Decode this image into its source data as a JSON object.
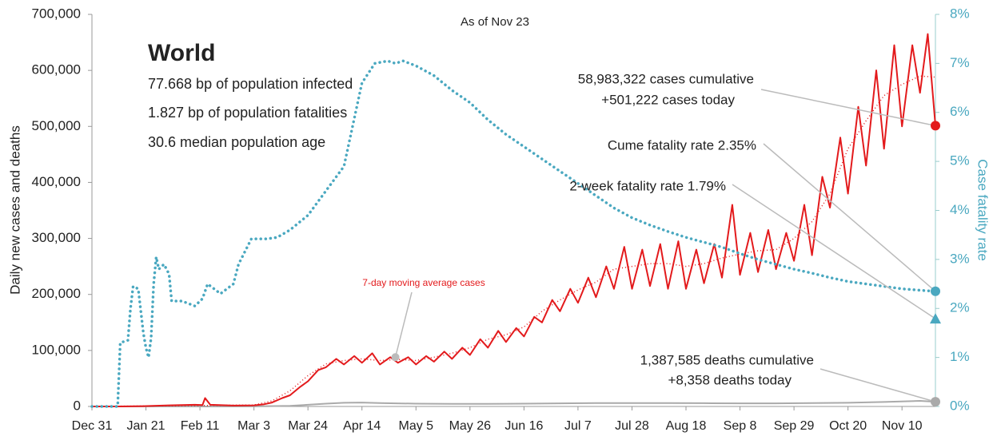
{
  "chart_data": {
    "type": "line",
    "subtitle": "As of Nov 23",
    "panel": {
      "title": "World",
      "lines": [
        "77.668 bp of population infected",
        "1.827 bp of population fatalities",
        "30.6 median population age"
      ]
    },
    "ylabel": "Daily new cases and deaths",
    "y2label": "Case fatality rate",
    "xlim": [
      0,
      328
    ],
    "xticks": [
      {
        "value": 0,
        "label": "Dec 31"
      },
      {
        "value": 21,
        "label": "Jan 21"
      },
      {
        "value": 42,
        "label": "Feb 11"
      },
      {
        "value": 63,
        "label": "Mar 3"
      },
      {
        "value": 84,
        "label": "Mar 24"
      },
      {
        "value": 105,
        "label": "Apr 14"
      },
      {
        "value": 126,
        "label": "May 5"
      },
      {
        "value": 147,
        "label": "May 26"
      },
      {
        "value": 168,
        "label": "Jun 16"
      },
      {
        "value": 189,
        "label": "Jul 7"
      },
      {
        "value": 210,
        "label": "Jul 28"
      },
      {
        "value": 231,
        "label": "Aug 18"
      },
      {
        "value": 252,
        "label": "Sep 8"
      },
      {
        "value": 273,
        "label": "Sep 29"
      },
      {
        "value": 294,
        "label": "Oct 20"
      },
      {
        "value": 315,
        "label": "Nov 10"
      }
    ],
    "ylim": [
      0,
      700000
    ],
    "yticks": [
      0,
      {
        "value": 100000,
        "label": "100,000"
      },
      {
        "value": 200000,
        "label": "200,000"
      },
      {
        "value": 300000,
        "label": "300,000"
      },
      {
        "value": 400000,
        "label": "400,000"
      },
      {
        "value": 500000,
        "label": "500,000"
      },
      {
        "value": 600000,
        "label": "600,000"
      },
      {
        "value": 700000,
        "label": "700,000"
      }
    ],
    "y2lim": [
      0,
      8
    ],
    "y2ticks": [
      {
        "value": 0,
        "label": "0%"
      },
      {
        "value": 1,
        "label": "1%"
      },
      {
        "value": 2,
        "label": "2%"
      },
      {
        "value": 3,
        "label": "3%"
      },
      {
        "value": 4,
        "label": "4%"
      },
      {
        "value": 5,
        "label": "5%"
      },
      {
        "value": 6,
        "label": "6%"
      },
      {
        "value": 7,
        "label": "7%"
      },
      {
        "value": 8,
        "label": "8%"
      }
    ],
    "series": [
      {
        "color": "#aaaaaa",
        "style": "solid",
        "axis": "y",
        "x": [
          0,
          50,
          63,
          77,
          84,
          91,
          98,
          105,
          112,
          126,
          140,
          154,
          168,
          182,
          196,
          210,
          224,
          238,
          252,
          266,
          280,
          294,
          308,
          322,
          328
        ],
        "values": [
          0,
          0,
          100,
          1000,
          3000,
          5000,
          6500,
          7000,
          6000,
          5000,
          4500,
          4500,
          5000,
          5500,
          6000,
          6000,
          6000,
          5800,
          5500,
          5500,
          6000,
          6500,
          8000,
          10000,
          8358
        ]
      },
      {
        "color": "#e31a1c",
        "style": "solid",
        "axis": "y",
        "x": [
          0,
          10,
          20,
          30,
          40,
          43,
          44,
          46,
          55,
          63,
          67,
          70,
          74,
          77,
          81,
          84,
          88,
          91,
          95,
          98,
          102,
          105,
          109,
          112,
          116,
          119,
          123,
          126,
          130,
          133,
          137,
          140,
          144,
          147,
          151,
          154,
          158,
          161,
          165,
          168,
          172,
          175,
          179,
          182,
          186,
          189,
          193,
          196,
          200,
          203,
          207,
          210,
          214,
          217,
          221,
          224,
          228,
          231,
          235,
          238,
          242,
          245,
          249,
          252,
          256,
          259,
          263,
          266,
          270,
          273,
          277,
          280,
          284,
          287,
          291,
          294,
          298,
          301,
          305,
          308,
          312,
          315,
          319,
          322,
          325,
          328
        ],
        "values": [
          0,
          0,
          500,
          2000,
          3000,
          2500,
          15000,
          3000,
          1500,
          2000,
          4000,
          7000,
          15000,
          20000,
          35000,
          45000,
          65000,
          70000,
          85000,
          75000,
          90000,
          78000,
          95000,
          75000,
          88000,
          78000,
          88000,
          75000,
          90000,
          80000,
          98000,
          85000,
          105000,
          92000,
          120000,
          105000,
          135000,
          115000,
          140000,
          125000,
          160000,
          150000,
          190000,
          170000,
          210000,
          185000,
          230000,
          195000,
          250000,
          210000,
          285000,
          210000,
          280000,
          215000,
          290000,
          210000,
          295000,
          210000,
          280000,
          220000,
          290000,
          230000,
          360000,
          235000,
          310000,
          240000,
          315000,
          245000,
          310000,
          260000,
          360000,
          270000,
          410000,
          355000,
          480000,
          380000,
          535000,
          430000,
          600000,
          460000,
          645000,
          500000,
          645000,
          560000,
          665000,
          501222
        ]
      },
      {
        "color": "#e31a1c",
        "style": "dotted",
        "axis": "y",
        "x": [
          0,
          63,
          70,
          77,
          84,
          91,
          98,
          105,
          112,
          119,
          126,
          133,
          140,
          147,
          154,
          161,
          168,
          175,
          182,
          189,
          196,
          203,
          210,
          217,
          224,
          231,
          238,
          245,
          252,
          259,
          266,
          273,
          280,
          287,
          294,
          301,
          308,
          315,
          322,
          328
        ],
        "values": [
          0,
          2500,
          10000,
          28000,
          55000,
          76000,
          82000,
          85000,
          82000,
          84000,
          82000,
          88000,
          95000,
          105000,
          120000,
          128000,
          142000,
          170000,
          190000,
          208000,
          222000,
          245000,
          250000,
          255000,
          255000,
          250000,
          255000,
          265000,
          272000,
          278000,
          280000,
          300000,
          330000,
          380000,
          460000,
          510000,
          555000,
          575000,
          590000,
          588000
        ]
      },
      {
        "color": "#4aa8c0",
        "style": "bigdot",
        "axis": "y2",
        "x": [
          0,
          10,
          11,
          14,
          15,
          16,
          18,
          20,
          21,
          22,
          23,
          24,
          25,
          26,
          28,
          30,
          31,
          35,
          40,
          43,
          45,
          50,
          55,
          57,
          62,
          68,
          72,
          77,
          84,
          91,
          98,
          105,
          110,
          115,
          118,
          121,
          126,
          133,
          140,
          147,
          154,
          161,
          168,
          175,
          182,
          189,
          196,
          203,
          210,
          217,
          224,
          231,
          238,
          245,
          252,
          259,
          266,
          273,
          280,
          287,
          294,
          301,
          308,
          315,
          322,
          328
        ],
        "values": [
          0,
          0,
          1.3,
          1.35,
          2.0,
          2.45,
          2.4,
          1.5,
          1.2,
          1.0,
          1.4,
          2.5,
          3.05,
          2.8,
          2.9,
          2.7,
          2.15,
          2.15,
          2.05,
          2.2,
          2.5,
          2.3,
          2.5,
          2.9,
          3.42,
          3.42,
          3.45,
          3.6,
          3.9,
          4.4,
          4.9,
          6.6,
          7.0,
          7.05,
          7.0,
          7.05,
          6.95,
          6.75,
          6.45,
          6.2,
          5.85,
          5.55,
          5.3,
          5.05,
          4.8,
          4.55,
          4.3,
          4.05,
          3.85,
          3.7,
          3.57,
          3.45,
          3.35,
          3.25,
          3.12,
          3.0,
          2.9,
          2.8,
          2.72,
          2.63,
          2.55,
          2.5,
          2.45,
          2.4,
          2.37,
          2.35
        ]
      }
    ],
    "annotations": [
      {
        "lines": [
          "58,983,322 cases cumulative",
          "+501,222 cases today"
        ],
        "x": 328,
        "value": 501222,
        "axis": "y",
        "marker": "circle",
        "color": "#e31a1c"
      },
      {
        "lines": [
          "Cume fatality rate 2.35%"
        ],
        "x": 328,
        "value": 2.35,
        "axis": "y2",
        "marker": "circle",
        "color": "#4aa8c0"
      },
      {
        "lines": [
          "2-week fatality rate 1.79%"
        ],
        "x": 328,
        "value": 1.79,
        "axis": "y2",
        "marker": "triangle",
        "color": "#4aa8c0"
      },
      {
        "lines": [
          "1,387,585 deaths cumulative",
          "+8,358 deaths today"
        ],
        "x": 328,
        "value": 8358,
        "axis": "y",
        "marker": "circle",
        "color": "#aaaaaa"
      },
      {
        "lines": [
          "7-day moving average cases"
        ],
        "x": 118,
        "value": 88000,
        "axis": "y",
        "marker": "circle",
        "color": "#bbbbbb",
        "text_color": "#e31a1c"
      }
    ]
  }
}
